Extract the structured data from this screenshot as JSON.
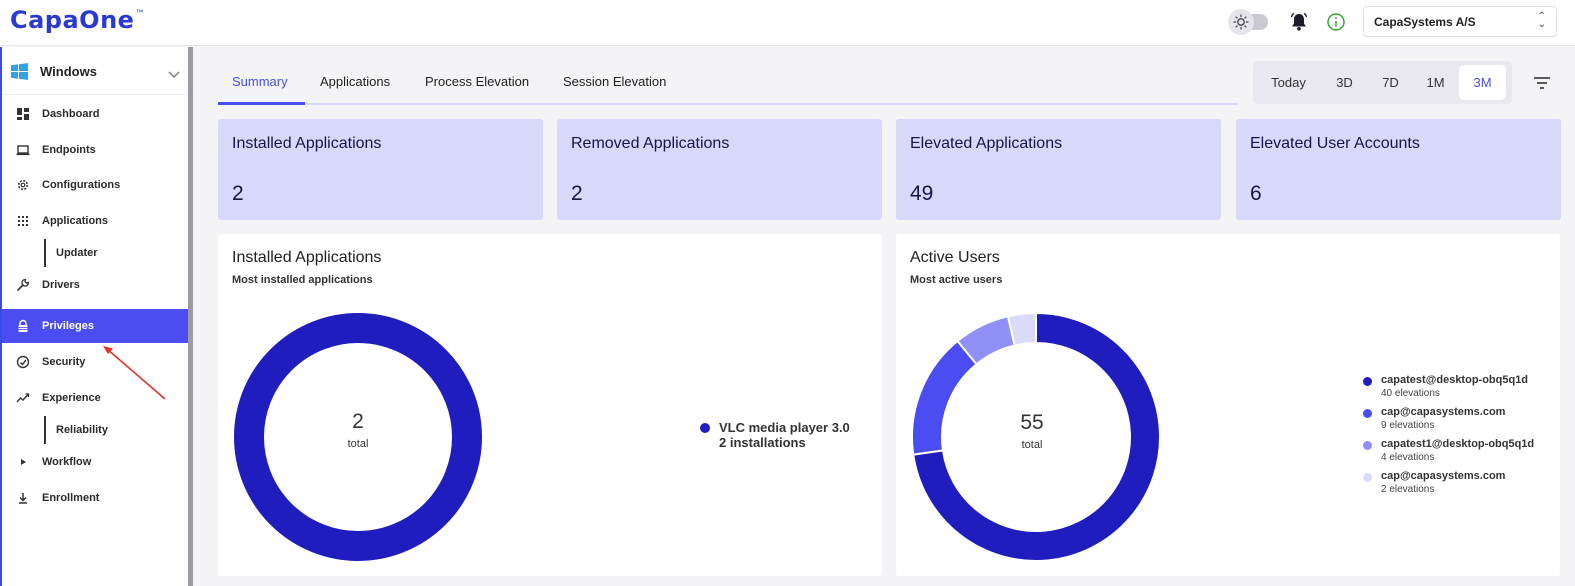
{
  "app": {
    "logo_text": "CapaOne",
    "logo_tm": "™",
    "org_name": "CapaSystems A/S"
  },
  "sidebar": {
    "platform": "Windows",
    "items": [
      {
        "label": "Dashboard",
        "icon": "dashboard-icon"
      },
      {
        "label": "Endpoints",
        "icon": "laptop-icon"
      },
      {
        "label": "Configurations",
        "icon": "gear-icon"
      },
      {
        "label": "Applications",
        "icon": "apps-grid-icon"
      },
      {
        "label": "Updater",
        "icon": "",
        "sub": true
      },
      {
        "label": "Drivers",
        "icon": "wrench-icon"
      },
      {
        "label": "Privileges",
        "icon": "lock-icon",
        "active": true
      },
      {
        "label": "Security",
        "icon": "shield-icon"
      },
      {
        "label": "Experience",
        "icon": "trend-icon"
      },
      {
        "label": "Reliability",
        "icon": "",
        "sub": true
      },
      {
        "label": "Workflow",
        "icon": "play-icon"
      },
      {
        "label": "Enrollment",
        "icon": "download-icon"
      }
    ]
  },
  "tabs": [
    {
      "label": "Summary",
      "active": true
    },
    {
      "label": "Applications"
    },
    {
      "label": "Process Elevation"
    },
    {
      "label": "Session Elevation"
    }
  ],
  "range": {
    "options": [
      "Today",
      "3D",
      "7D",
      "1M",
      "3M"
    ],
    "selected": "3M"
  },
  "stats": [
    {
      "title": "Installed Applications",
      "value": "2"
    },
    {
      "title": "Removed Applications",
      "value": "2"
    },
    {
      "title": "Elevated Applications",
      "value": "49"
    },
    {
      "title": "Elevated User Accounts",
      "value": "6"
    }
  ],
  "panels": {
    "installed": {
      "title": "Installed Applications",
      "subtitle": "Most installed applications",
      "total": "2",
      "total_label": "total",
      "legend": [
        {
          "name": "VLC media player 3.0",
          "detail": "2 installations",
          "color": "#1f1dbd"
        }
      ]
    },
    "active": {
      "title": "Active Users",
      "subtitle": "Most active users",
      "total": "55",
      "total_label": "total",
      "legend": [
        {
          "name": "capatest@desktop-obq5q1d",
          "detail": "40 elevations",
          "color": "#1f1dbd"
        },
        {
          "name": "cap@capasystems.com",
          "detail": "9 elevations",
          "color": "#4b4df2"
        },
        {
          "name": "capatest1@desktop-obq5q1d",
          "detail": "4 elevations",
          "color": "#8f8ff5"
        },
        {
          "name": "cap@capasystems.com",
          "detail": "2 elevations",
          "color": "#dadafb"
        }
      ]
    }
  },
  "chart_data": [
    {
      "type": "pie",
      "title": "Installed Applications",
      "categories": [
        "VLC media player 3.0"
      ],
      "values": [
        2
      ]
    },
    {
      "type": "pie",
      "title": "Active Users",
      "categories": [
        "capatest@desktop-obq5q1d",
        "cap@capasystems.com",
        "capatest1@desktop-obq5q1d",
        "cap@capasystems.com"
      ],
      "values": [
        40,
        9,
        4,
        2
      ]
    }
  ]
}
